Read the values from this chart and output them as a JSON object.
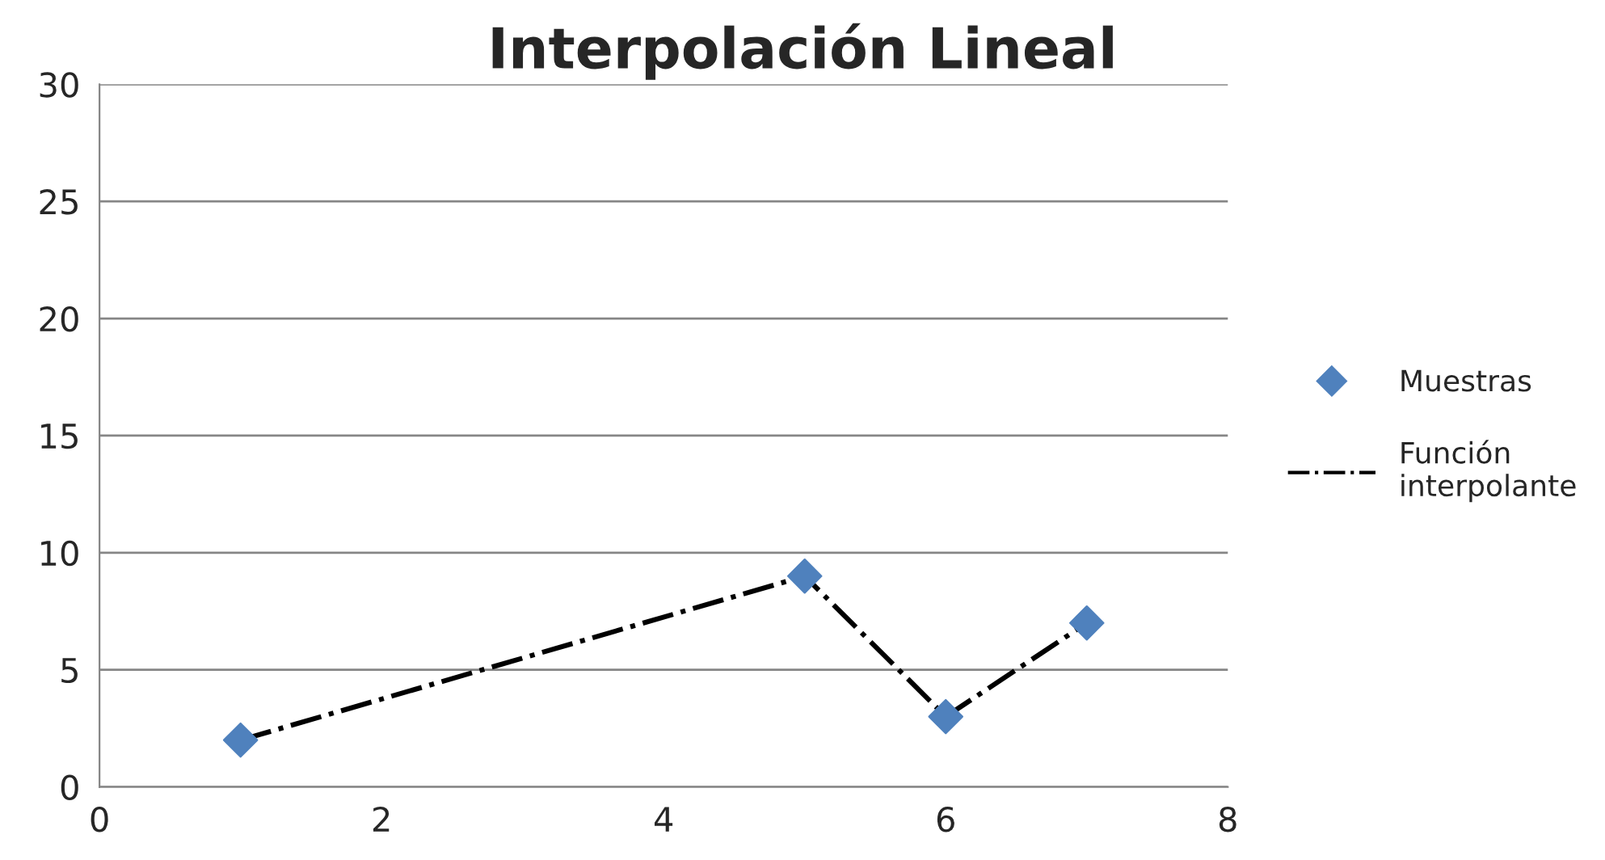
{
  "chart_data": {
    "type": "scatter",
    "title": "Interpolación Lineal",
    "series": [
      {
        "name": "Muestras",
        "color": "#4f81bd",
        "marker": "diamond",
        "x": [
          1,
          5,
          6,
          7
        ],
        "values": [
          2,
          9,
          3,
          7
        ]
      },
      {
        "name": "Función\ninterpolante",
        "type": "line",
        "color": "#000000",
        "marker": "none",
        "line_style": "dashdot",
        "x": [
          1,
          5,
          6,
          7
        ],
        "values": [
          2,
          9,
          3,
          7
        ]
      }
    ],
    "xlim": [
      0,
      8
    ],
    "xticks": [
      0,
      2,
      4,
      6,
      8
    ],
    "ylim": [
      0,
      30
    ],
    "yticks": [
      0,
      5,
      10,
      15,
      20,
      25,
      30
    ],
    "grid": "y",
    "legend": "right"
  }
}
